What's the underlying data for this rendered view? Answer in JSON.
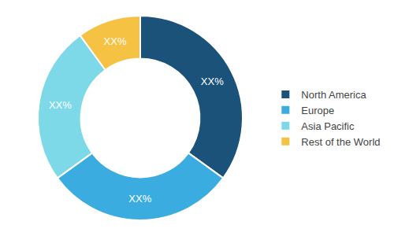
{
  "chart_data": {
    "type": "donut",
    "categories": [
      "North America",
      "Europe",
      "Asia Pacific",
      "Rest of the World"
    ],
    "values": [
      35,
      30,
      25,
      10
    ],
    "value_labels": [
      "XX%",
      "XX%",
      "XX%",
      "XX%"
    ],
    "colors": [
      "#1a527a",
      "#3aace0",
      "#7dd8e8",
      "#f6c243"
    ],
    "data_labels": true,
    "legend": "right"
  }
}
